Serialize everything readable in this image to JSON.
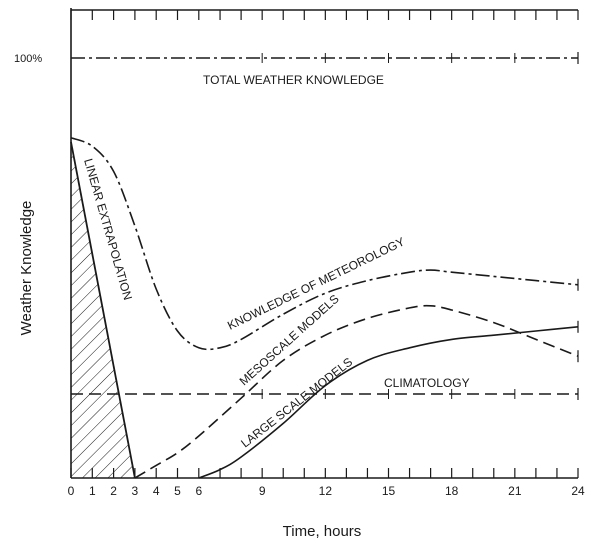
{
  "chart_data": {
    "type": "line",
    "title": "",
    "xlabel": "Time, hours",
    "ylabel": "Weather Knowledge",
    "xlim": [
      0,
      24
    ],
    "ylim": [
      0,
      100
    ],
    "x_ticks": [
      "0",
      "1",
      "2",
      "3",
      "4",
      "5",
      "6",
      "9",
      "12",
      "15",
      "18",
      "21",
      "24"
    ],
    "y_ticks": [
      "100%"
    ],
    "series": [
      {
        "name": "TOTAL WEATHER KNOWLEDGE",
        "style": "dash-dot",
        "x": [
          0,
          24
        ],
        "y": [
          100,
          100
        ]
      },
      {
        "name": "KNOWLEDGE OF METEOROLOGY",
        "style": "dash-dot",
        "x": [
          0,
          1,
          2,
          3,
          4,
          5,
          6,
          7,
          8,
          10,
          12,
          14,
          16,
          17,
          18,
          20,
          22,
          24
        ],
        "y": [
          81,
          79,
          73,
          60,
          45,
          35,
          31,
          31,
          33,
          39,
          44,
          47,
          49,
          49.5,
          49,
          48,
          47,
          46
        ]
      },
      {
        "name": "MESOSCALE MODELS",
        "style": "dashed",
        "x": [
          3,
          4,
          5,
          6,
          8,
          10,
          12,
          14,
          16,
          17,
          18,
          20,
          22,
          24
        ],
        "y": [
          0,
          3,
          6,
          10,
          19,
          28,
          34,
          38,
          40.5,
          41,
          40,
          37,
          33,
          29
        ]
      },
      {
        "name": "LARGE SCALE MODELS",
        "style": "solid",
        "x": [
          6,
          7,
          8,
          10,
          12,
          14,
          16,
          18,
          20,
          22,
          24
        ],
        "y": [
          0,
          2,
          5,
          13,
          22,
          28,
          31,
          33,
          34,
          35,
          36
        ]
      },
      {
        "name": "CLIMATOLOGY",
        "style": "dashed",
        "x": [
          0,
          24
        ],
        "y": [
          20,
          20
        ]
      },
      {
        "name": "LINEAR EXTRAPOLATION",
        "style": "hatched-area",
        "x": [
          0,
          3
        ],
        "y": [
          80,
          0
        ]
      }
    ],
    "annotations": [
      "TOTAL WEATHER KNOWLEDGE",
      "KNOWLEDGE OF METEOROLOGY",
      "MESOSCALE MODELS",
      "LARGE SCALE MODELS",
      "CLIMATOLOGY",
      "LINEAR EXTRAPOLATION"
    ]
  }
}
